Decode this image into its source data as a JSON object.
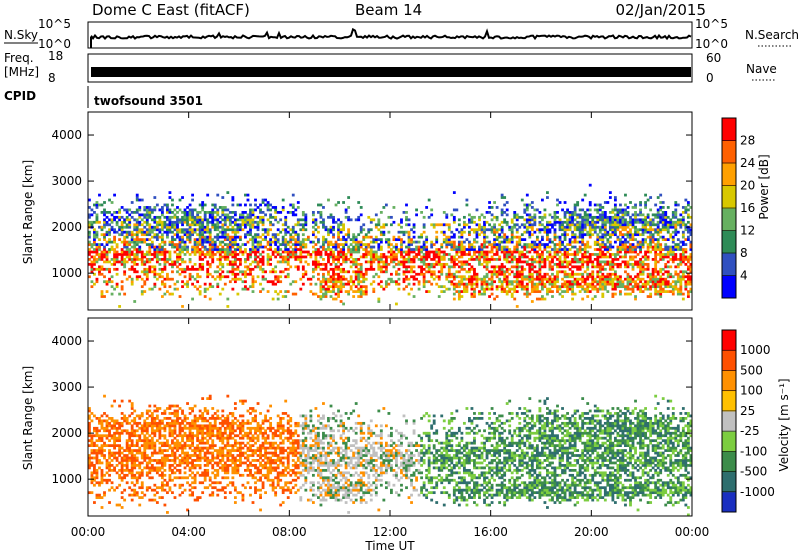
{
  "header": {
    "station": "Dome C East (fitACF)",
    "beam": "Beam 14",
    "date": "02/Jan/2015"
  },
  "top_panels": {
    "nsky_label": "N.Sky",
    "nsky_ticks": [
      "10^5",
      "10^0"
    ],
    "nsearch_label": "N.Search",
    "nsearch_ticks": [
      "10^5",
      "10^0"
    ],
    "freq_label_line1": "Freq.",
    "freq_label_line2": "[MHz]",
    "freq_ticks": [
      "18",
      "8"
    ],
    "nave_label": "Nave",
    "nave_ticks": [
      "60",
      "0"
    ],
    "cpid_label": "CPID",
    "cpid_value": "twofsound 3501"
  },
  "colors": {
    "power": [
      "#0000ff",
      "#3050c0",
      "#2e8b57",
      "#66b060",
      "#d8c800",
      "#ffa000",
      "#ff6000",
      "#ff0000"
    ],
    "velocity": [
      "#1a2fc0",
      "#2e6e6e",
      "#3c8c4a",
      "#7ccd40",
      "#c0c0c0",
      "#ffc000",
      "#ff9000",
      "#ff5000",
      "#ff0000"
    ]
  },
  "chart_data": [
    {
      "type": "heatmap",
      "name": "power",
      "ylabel": "Slant Range [km]",
      "yticks": [
        "1000",
        "2000",
        "3000",
        "4000"
      ],
      "ylim": [
        200,
        4500
      ],
      "xlim": [
        "00:00",
        "24:00"
      ],
      "colorbar_label": "Power [dB]",
      "colorbar_ticks": [
        "4",
        "8",
        "12",
        "16",
        "20",
        "24",
        "28"
      ]
    },
    {
      "type": "heatmap",
      "name": "velocity",
      "ylabel": "Slant Range [km]",
      "yticks": [
        "1000",
        "2000",
        "3000",
        "4000"
      ],
      "ylim": [
        200,
        4500
      ],
      "xlim": [
        "00:00",
        "24:00"
      ],
      "colorbar_label": "Velocity  [m s⁻¹]",
      "colorbar_ticks": [
        "1000",
        "500",
        "100",
        "25",
        "-25",
        "-100",
        "-500",
        "-1000"
      ]
    }
  ],
  "xaxis": {
    "ticks": [
      "00:00",
      "04:00",
      "08:00",
      "12:00",
      "16:00",
      "20:00",
      "00:00"
    ],
    "label": "Time UT"
  }
}
